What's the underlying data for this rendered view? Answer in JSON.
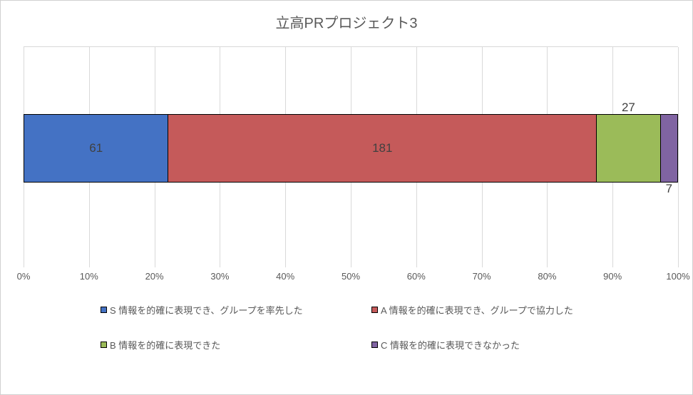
{
  "chart": {
    "type": "stacked-bar-100",
    "title": "立高PRプロジェクト3",
    "title_fontsize": 20,
    "title_color": "#595959",
    "background_color": "#ffffff",
    "axis": {
      "ticks": [
        "0%",
        "10%",
        "20%",
        "30%",
        "40%",
        "50%",
        "60%",
        "70%",
        "80%",
        "90%",
        "100%"
      ],
      "tick_fontsize": 13,
      "tick_color": "#595959",
      "grid_color": "#d9d9d9"
    },
    "series": [
      {
        "key": "S",
        "label": "S   情報を的確に表現でき、グループを率先した",
        "value": 61,
        "color": "#4472c4",
        "data_label_pos": "center"
      },
      {
        "key": "A",
        "label": "A   情報を的確に表現でき、グループで協力した",
        "value": 181,
        "color": "#c55a5a",
        "data_label_pos": "center"
      },
      {
        "key": "B",
        "label": "B   情報を的確に表現できた",
        "value": 27,
        "color": "#9bbb59",
        "data_label_pos": "above"
      },
      {
        "key": "C",
        "label": "C   情報を的確に表現できなかった",
        "value": 7,
        "color": "#8064a2",
        "data_label_pos": "below"
      }
    ],
    "data_label_fontsize": 17,
    "data_label_color": "#404040",
    "bar_border_color": "#000000",
    "legend_fontsize": 13,
    "legend_color": "#595959"
  }
}
